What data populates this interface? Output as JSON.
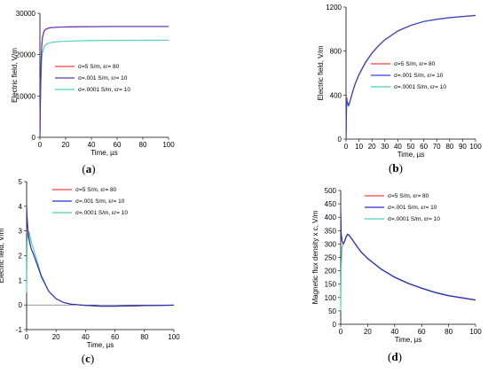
{
  "chart_data": [
    {
      "type": "line",
      "caption_open": "(",
      "caption_letter": "a",
      "caption_close": ")",
      "xlabel": "Time, µs",
      "ylabel": "Electric field, V/m",
      "xlim": [
        0,
        100
      ],
      "ylim": [
        0,
        30000
      ],
      "xticks": [
        0,
        20,
        40,
        60,
        80,
        100
      ],
      "yticks": [
        0,
        10000,
        20000,
        30000
      ],
      "grid": false,
      "legend_position": "center-right",
      "series": [
        {
          "name": "σ=5 S/m, εr= 80",
          "color": "#ff3b3b",
          "x": [
            0,
            0.5,
            1,
            1.5,
            2,
            3,
            4,
            5,
            6,
            8,
            10,
            15,
            20,
            30,
            40,
            60,
            80,
            100
          ],
          "y": [
            0,
            12000,
            19000,
            22500,
            24200,
            25500,
            26000,
            26200,
            26350,
            26500,
            26550,
            26650,
            26700,
            26750,
            26780,
            26800,
            26800,
            26800
          ]
        },
        {
          "name": "σ=.001 S/m, εr= 10",
          "color": "#5533bb",
          "x": [
            0,
            0.5,
            1,
            1.5,
            2,
            3,
            4,
            5,
            6,
            8,
            10,
            15,
            20,
            30,
            40,
            60,
            80,
            100
          ],
          "y": [
            0,
            12000,
            19000,
            22500,
            24200,
            25500,
            26000,
            26200,
            26350,
            26500,
            26550,
            26650,
            26700,
            26750,
            26780,
            26800,
            26800,
            26800
          ]
        },
        {
          "name": "σ=.0001 S/m, εr= 10",
          "color": "#44d4b4",
          "x": [
            0,
            0.5,
            1,
            1.5,
            2,
            3,
            4,
            5,
            6,
            8,
            10,
            15,
            20,
            30,
            40,
            60,
            80,
            100
          ],
          "y": [
            0,
            9500,
            15500,
            19000,
            20600,
            21700,
            22200,
            22500,
            22700,
            22900,
            23000,
            23150,
            23250,
            23350,
            23400,
            23450,
            23480,
            23500
          ]
        }
      ]
    },
    {
      "type": "line",
      "caption_open": "(",
      "caption_letter": "b",
      "caption_close": ")",
      "xlabel": "Time, µs",
      "ylabel": "Electric field, V/m",
      "xlim": [
        0,
        100
      ],
      "ylim": [
        0,
        1200
      ],
      "xticks": [
        0,
        10,
        20,
        30,
        40,
        50,
        60,
        70,
        80,
        90,
        100
      ],
      "yticks": [
        0,
        400,
        800,
        1200
      ],
      "grid": false,
      "legend_position": "center-right",
      "series": [
        {
          "name": "σ=5 S/m, εr= 80",
          "color": "#ff3b3b",
          "x": [
            0,
            0.5,
            1,
            2,
            3,
            5,
            7,
            10,
            15,
            20,
            25,
            30,
            40,
            50,
            60,
            70,
            80,
            90,
            100
          ],
          "y": [
            0,
            380,
            340,
            310,
            345,
            430,
            505,
            590,
            700,
            785,
            850,
            905,
            985,
            1035,
            1070,
            1090,
            1105,
            1115,
            1125
          ]
        },
        {
          "name": "σ=.001 S/m, εr= 10",
          "color": "#3040d8",
          "x": [
            0,
            0.5,
            1,
            2,
            3,
            5,
            7,
            10,
            15,
            20,
            25,
            30,
            40,
            50,
            60,
            70,
            80,
            90,
            100
          ],
          "y": [
            0,
            370,
            330,
            305,
            340,
            425,
            500,
            585,
            695,
            780,
            848,
            903,
            983,
            1034,
            1069,
            1089,
            1104,
            1114,
            1124
          ]
        },
        {
          "name": "σ=.0001 S/m, εr= 10",
          "color": "#44d4b4",
          "x": [
            0,
            0.5,
            1,
            2,
            3,
            5,
            7,
            10,
            15,
            20,
            25,
            30,
            40,
            50,
            60,
            70,
            80,
            90,
            100
          ],
          "y": [
            0,
            330,
            310,
            300,
            335,
            420,
            497,
            583,
            693,
            779,
            847,
            902,
            982,
            1033,
            1068,
            1088,
            1103,
            1113,
            1123
          ]
        }
      ]
    },
    {
      "type": "line",
      "caption_open": "(",
      "caption_letter": "c",
      "caption_close": ")",
      "xlabel": "Time, µs",
      "ylabel": "Electric field, V/m",
      "xlim": [
        0,
        100
      ],
      "ylim": [
        -1,
        5
      ],
      "xticks": [
        0,
        20,
        40,
        60,
        80,
        100
      ],
      "yticks": [
        -1,
        0,
        1,
        2,
        3,
        4,
        5
      ],
      "grid": false,
      "legend_position": "top-right",
      "series": [
        {
          "name": "σ=5 S/m, εr= 80",
          "color": "#ff3b3b",
          "x": [
            0,
            0.3,
            1,
            2,
            3,
            5,
            8,
            10,
            15,
            20,
            25,
            30,
            40,
            50,
            60,
            70,
            80,
            90,
            100
          ],
          "y": [
            4.0,
            3.6,
            3.0,
            2.6,
            2.3,
            2.0,
            1.5,
            1.15,
            0.55,
            0.25,
            0.1,
            0.03,
            -0.02,
            -0.05,
            -0.05,
            -0.04,
            -0.03,
            -0.02,
            -0.01
          ]
        },
        {
          "name": "σ=.001 S/m, εr= 10",
          "color": "#2030c8",
          "x": [
            0,
            0.3,
            1,
            2,
            3,
            5,
            8,
            10,
            15,
            20,
            25,
            30,
            40,
            50,
            60,
            70,
            80,
            90,
            100
          ],
          "y": [
            4.0,
            3.5,
            2.9,
            2.55,
            2.3,
            2.0,
            1.5,
            1.15,
            0.55,
            0.25,
            0.1,
            0.03,
            -0.02,
            -0.05,
            -0.05,
            -0.04,
            -0.03,
            -0.02,
            -0.01
          ]
        },
        {
          "name": "σ=.0001 S/m, εr= 10",
          "color": "#44d4b4",
          "x": [
            0,
            0.3,
            1,
            2,
            3,
            5,
            8,
            10,
            15,
            20,
            25,
            30,
            40,
            50,
            60,
            70,
            80,
            90,
            100
          ],
          "y": [
            0.5,
            2.5,
            3.0,
            2.9,
            2.6,
            2.2,
            1.6,
            1.2,
            0.56,
            0.26,
            0.1,
            0.03,
            -0.02,
            -0.05,
            -0.05,
            -0.04,
            -0.03,
            -0.02,
            -0.01
          ]
        }
      ]
    },
    {
      "type": "line",
      "caption_open": "(",
      "caption_letter": "d",
      "caption_close": ")",
      "xlabel": "Time, µs",
      "ylabel": "Magnetic flux density x c, V/m",
      "xlim": [
        0,
        100
      ],
      "ylim": [
        0,
        500
      ],
      "xticks": [
        0,
        20,
        40,
        60,
        80,
        100
      ],
      "yticks": [
        0,
        50,
        100,
        150,
        200,
        250,
        300,
        350,
        400,
        450,
        500
      ],
      "grid": false,
      "legend_position": "top-right",
      "series": [
        {
          "name": "σ=5 S/m, εr= 80",
          "color": "#ff3b3b",
          "x": [
            0,
            0.3,
            1,
            2,
            3,
            4,
            5,
            6,
            8,
            10,
            15,
            20,
            30,
            40,
            50,
            60,
            70,
            80,
            90,
            100
          ],
          "y": [
            420,
            340,
            310,
            300,
            310,
            325,
            335,
            333,
            320,
            305,
            270,
            245,
            205,
            175,
            152,
            134,
            118,
            106,
            98,
            90
          ]
        },
        {
          "name": "σ=.001 S/m, εr= 10",
          "color": "#2030c8",
          "x": [
            0,
            0.3,
            1,
            2,
            3,
            4,
            5,
            6,
            8,
            10,
            15,
            20,
            30,
            40,
            50,
            60,
            70,
            80,
            90,
            100
          ],
          "y": [
            430,
            345,
            312,
            301,
            311,
            326,
            336,
            334,
            321,
            306,
            271,
            246,
            206,
            176,
            153,
            135,
            119,
            107,
            99,
            91
          ]
        },
        {
          "name": "σ=.0001 S/m, εr= 10",
          "color": "#44d4b4",
          "x": [
            0,
            0.3,
            1,
            2,
            3,
            4,
            5,
            6,
            8,
            10,
            15,
            20,
            30,
            40,
            50,
            60,
            70,
            80,
            90,
            100
          ],
          "y": [
            50,
            210,
            290,
            300,
            315,
            330,
            338,
            335,
            322,
            307,
            272,
            247,
            207,
            177,
            154,
            136,
            120,
            108,
            99,
            91
          ]
        }
      ]
    }
  ]
}
